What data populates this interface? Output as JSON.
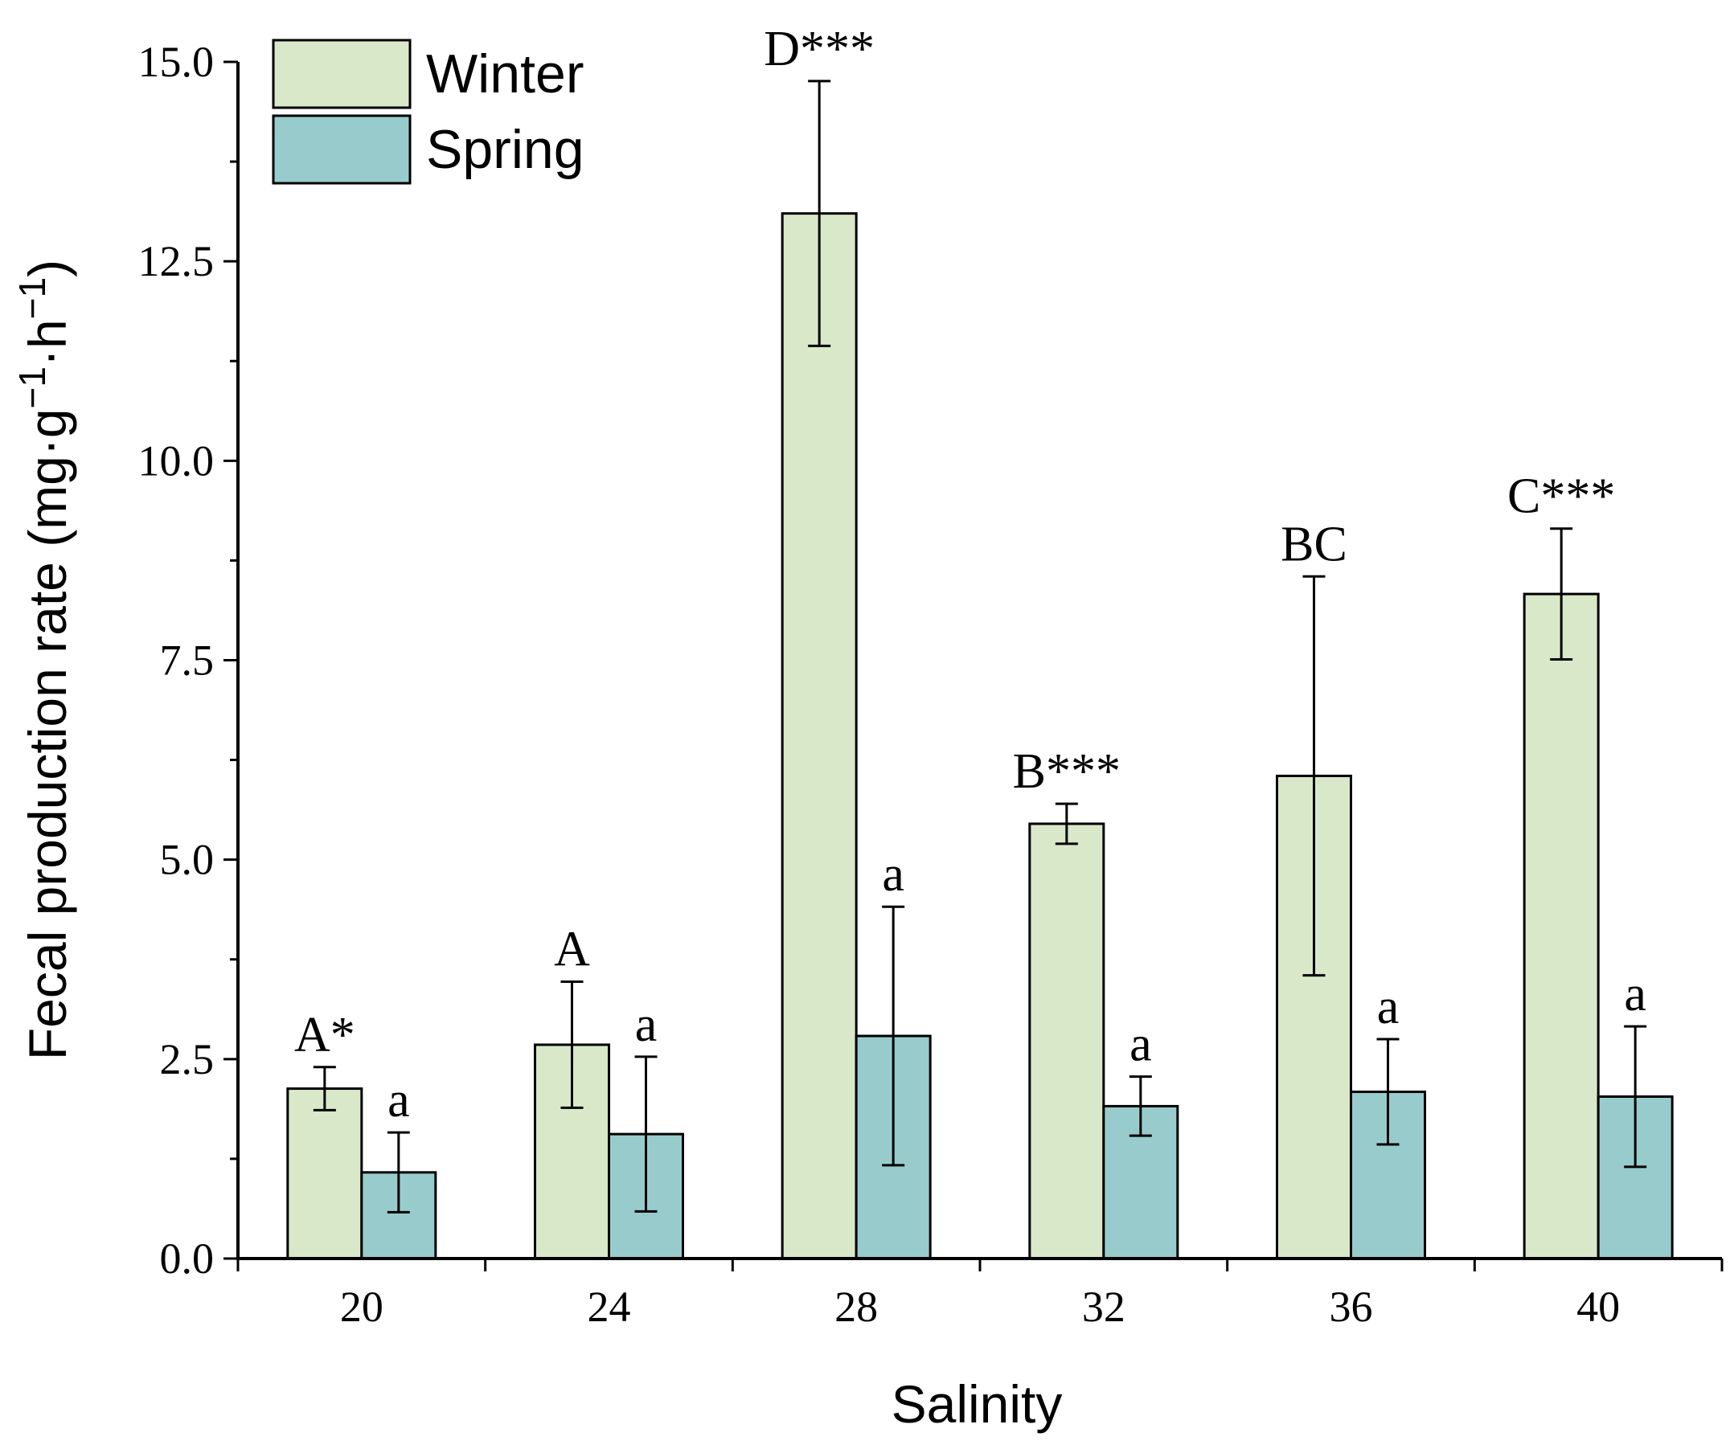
{
  "chart_data": {
    "type": "bar",
    "title": "",
    "xlabel": "Salinity",
    "ylabel": "Fecal production rate (mg·g",
    "ylabel_sup1": "−1",
    "ylabel_mid": "·h",
    "ylabel_sup2": "−1",
    "ylabel_end": ")",
    "categories": [
      "20",
      "24",
      "28",
      "32",
      "36",
      "40"
    ],
    "ylim": [
      0,
      15
    ],
    "yticks": [
      0,
      2.5,
      5,
      7.5,
      10,
      12.5,
      15
    ],
    "ytick_labels": [
      "0.0",
      "2.5",
      "5.0",
      "7.5",
      "10.0",
      "12.5",
      "15.0"
    ],
    "legend_position": "top-left",
    "colors": {
      "Winter": "#d9e8c9",
      "Spring": "#98cccc"
    },
    "series": [
      {
        "name": "Winter",
        "values": [
          2.13,
          2.68,
          13.1,
          5.45,
          6.05,
          8.33
        ],
        "errors": [
          0.27,
          0.79,
          1.66,
          0.25,
          2.5,
          0.82
        ],
        "labels": [
          "A*",
          "A",
          "D***",
          "B***",
          "BC",
          "C***"
        ]
      },
      {
        "name": "Spring",
        "values": [
          1.08,
          1.56,
          2.79,
          1.91,
          2.09,
          2.03
        ],
        "errors": [
          0.5,
          0.97,
          1.62,
          0.37,
          0.66,
          0.88
        ],
        "labels": [
          "a",
          "a",
          "a",
          "a",
          "a",
          "a"
        ]
      }
    ]
  }
}
